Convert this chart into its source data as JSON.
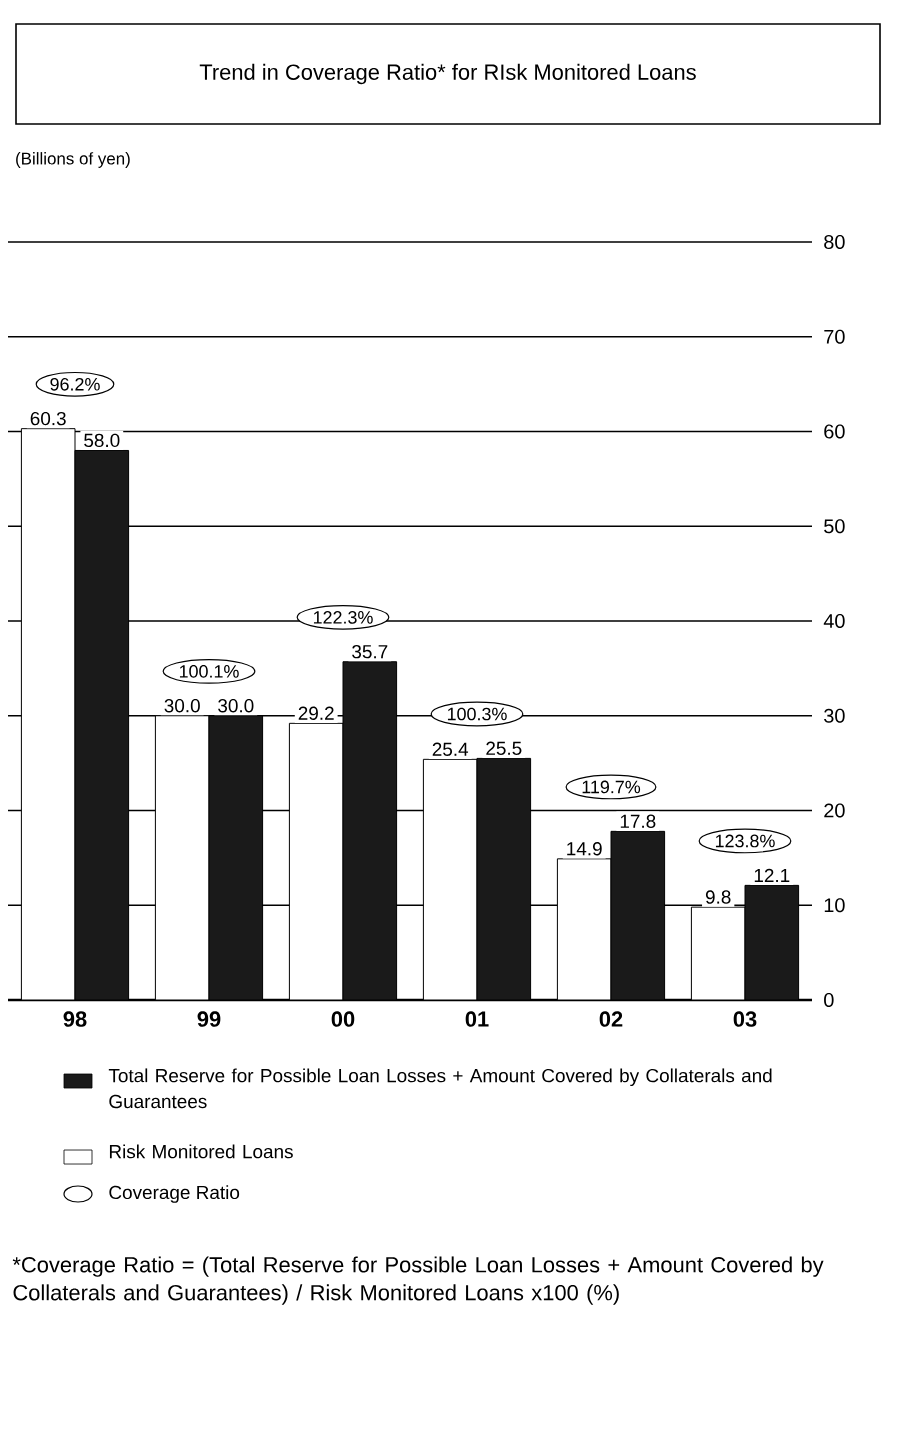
{
  "chart_data": {
    "type": "bar",
    "title": "Trend in Coverage Ratio* for RIsk Monitored Loans",
    "ylabel": "(Billions of yen)",
    "categories": [
      "98",
      "99",
      "00",
      "01",
      "02",
      "03"
    ],
    "series": [
      {
        "name": "Risk Monitored Loans",
        "color": "#ffffff",
        "values": [
          60.3,
          30.0,
          29.2,
          25.4,
          14.9,
          9.8
        ],
        "value_labels": [
          "60.3",
          "30.0",
          "29.2",
          "25.4",
          "14.9",
          "9.8"
        ]
      },
      {
        "name": "Total Reserve for Possible Loan Losses + Amount Covered by Collaterals and Guarantees",
        "color": "#1a1a1a",
        "values": [
          58.0,
          30.0,
          35.7,
          25.5,
          17.8,
          12.1
        ],
        "value_labels": [
          "58.0",
          "30.0",
          "35.7",
          "25.5",
          "17.8",
          "12.1"
        ]
      }
    ],
    "ylim": [
      0,
      80
    ],
    "yticks": [
      0,
      10,
      20,
      30,
      40,
      50,
      60,
      70,
      80
    ],
    "grid": "y",
    "legend": "bottom",
    "annotations": [
      "96.2%",
      "100.1%",
      "122.3%",
      "100.3%",
      "119.7%",
      "123.8%",
      "Coverage Ratio",
      "*Coverage Ratio = (Total Reserve for Possible Loan Losses + Amount Covered by Collaterals and Guarantees) / Risk Monitored Loans x100 (%)"
    ]
  }
}
